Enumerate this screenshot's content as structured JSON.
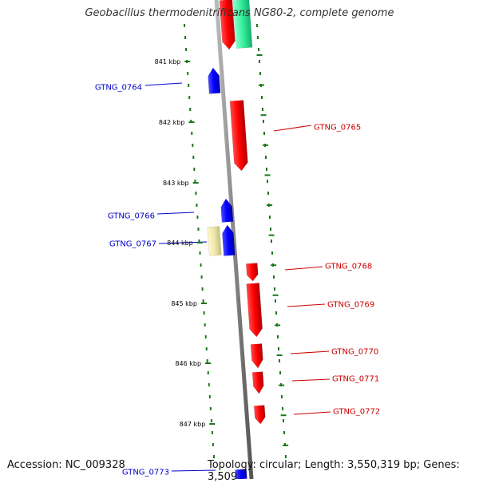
{
  "title": "Geobacillus thermodenitrificans NG80-2, complete genome",
  "footer": {
    "accession": "Accession: NC_009328",
    "summary": "Topology: circular; Length: 3,550,319 bp; Genes: 3,509"
  },
  "colors": {
    "forward_gene": "#ff0000",
    "reverse_gene": "#0000ff",
    "forward_label": "#cc0000",
    "reverse_label": "#0000cc",
    "rna_gene": "#33ee99",
    "pseudo_gene": "#eee8aa",
    "tick": "#1a7a1a",
    "backbone": "#888888"
  },
  "kbp_ticks": [
    "841 kbp",
    "842 kbp",
    "843 kbp",
    "844 kbp",
    "845 kbp",
    "846 kbp",
    "847 kbp"
  ],
  "genes": [
    {
      "id": "GTNG_0764",
      "strand": "reverse"
    },
    {
      "id": "GTNG_0765",
      "strand": "forward"
    },
    {
      "id": "GTNG_0766",
      "strand": "reverse"
    },
    {
      "id": "GTNG_0767",
      "strand": "reverse"
    },
    {
      "id": "GTNG_0768",
      "strand": "forward"
    },
    {
      "id": "GTNG_0769",
      "strand": "forward"
    },
    {
      "id": "GTNG_0770",
      "strand": "forward"
    },
    {
      "id": "GTNG_0771",
      "strand": "forward"
    },
    {
      "id": "GTNG_0772",
      "strand": "forward"
    },
    {
      "id": "GTNG_0773",
      "strand": "reverse"
    }
  ]
}
